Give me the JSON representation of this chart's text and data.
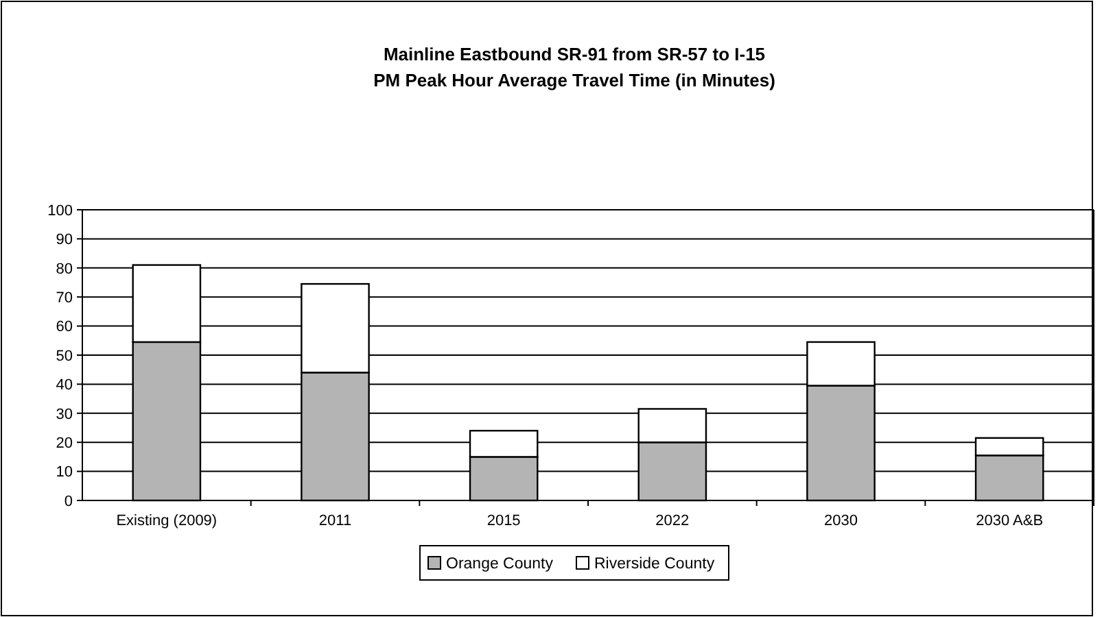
{
  "chart_data": {
    "type": "bar",
    "stacked": true,
    "title": "Mainline Eastbound SR-91 from SR-57 to I-15",
    "subtitle": "PM Peak Hour Average Travel Time (in Minutes)",
    "categories": [
      "Existing (2009)",
      "2011",
      "2015",
      "2022",
      "2030",
      "2030 A&B"
    ],
    "series": [
      {
        "name": "Orange County",
        "color": "#b4b4b4",
        "values": [
          54.5,
          44,
          15,
          20,
          39.5,
          15.5
        ]
      },
      {
        "name": "Riverside County",
        "color": "#ffffff",
        "values": [
          26.5,
          30.5,
          9,
          11.5,
          15,
          6
        ]
      }
    ],
    "ylim": [
      0,
      100
    ],
    "yticks": [
      0,
      10,
      20,
      30,
      40,
      50,
      60,
      70,
      80,
      90,
      100
    ],
    "grid": "y",
    "legend": "bottom"
  }
}
